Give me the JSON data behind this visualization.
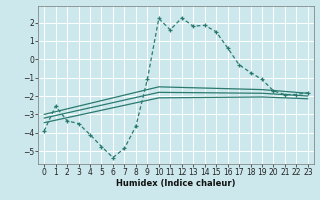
{
  "bg_color": "#cce8ec",
  "grid_color": "#ffffff",
  "line_color": "#2a7a70",
  "xlabel": "Humidex (Indice chaleur)",
  "xlim": [
    -0.5,
    23.5
  ],
  "ylim": [
    -5.7,
    2.9
  ],
  "xticks": [
    0,
    1,
    2,
    3,
    4,
    5,
    6,
    7,
    8,
    9,
    10,
    11,
    12,
    13,
    14,
    15,
    16,
    17,
    18,
    19,
    20,
    21,
    22,
    23
  ],
  "yticks": [
    -5,
    -4,
    -3,
    -2,
    -1,
    0,
    1,
    2
  ],
  "main_x": [
    0,
    1,
    2,
    3,
    4,
    5,
    6,
    7,
    8,
    9,
    10,
    11,
    12,
    13,
    14,
    15,
    16,
    17,
    18,
    19,
    20,
    21,
    22,
    23
  ],
  "main_y": [
    -3.9,
    -2.55,
    -3.35,
    -3.5,
    -4.1,
    -4.75,
    -5.35,
    -4.85,
    -3.65,
    -1.1,
    2.22,
    1.6,
    2.25,
    1.8,
    1.85,
    1.5,
    0.62,
    -0.3,
    -0.72,
    -1.1,
    -1.72,
    -1.92,
    -1.92,
    -1.82
  ],
  "trendlines": [
    {
      "x": [
        0,
        10,
        19,
        23
      ],
      "y": [
        -3.0,
        -1.5,
        -1.65,
        -1.85
      ]
    },
    {
      "x": [
        0,
        10,
        19,
        23
      ],
      "y": [
        -3.2,
        -1.8,
        -1.85,
        -2.0
      ]
    },
    {
      "x": [
        0,
        10,
        19,
        23
      ],
      "y": [
        -3.45,
        -2.1,
        -2.05,
        -2.15
      ]
    }
  ]
}
